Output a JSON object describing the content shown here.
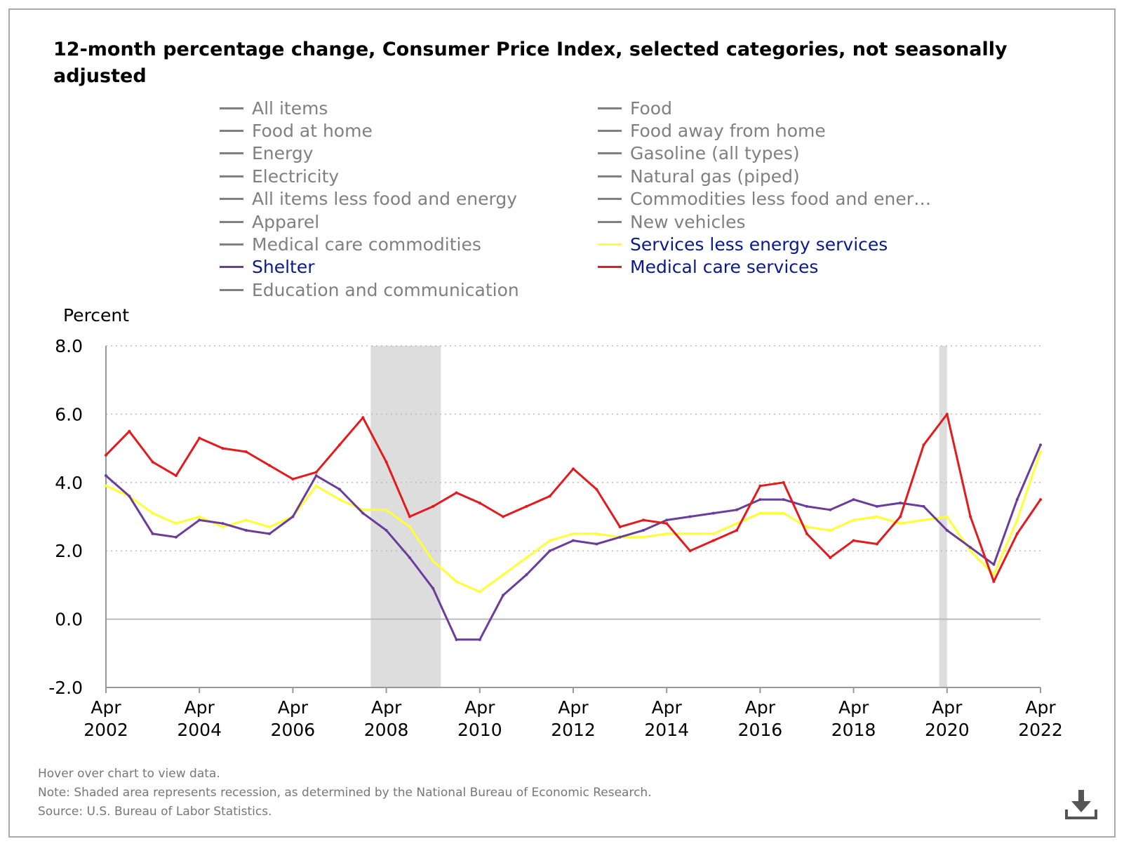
{
  "chart_data": {
    "type": "line",
    "title": "12-month percentage change, Consumer Price Index, selected categories, not seasonally adjusted",
    "ylabel": "Percent",
    "ylim": [
      -2.0,
      8.0
    ],
    "yticks": [
      8.0,
      6.0,
      4.0,
      2.0,
      0.0,
      -2.0
    ],
    "ytick_labels": [
      "8.0",
      "6.0",
      "4.0",
      "2.0",
      "0.0",
      "-2.0"
    ],
    "xlim": [
      "2002-04",
      "2022-04"
    ],
    "xticks": [
      {
        "month": "Apr",
        "year": "2002",
        "date": "2002-04"
      },
      {
        "month": "Apr",
        "year": "2004",
        "date": "2004-04"
      },
      {
        "month": "Apr",
        "year": "2006",
        "date": "2006-04"
      },
      {
        "month": "Apr",
        "year": "2008",
        "date": "2008-04"
      },
      {
        "month": "Apr",
        "year": "2010",
        "date": "2010-04"
      },
      {
        "month": "Apr",
        "year": "2012",
        "date": "2012-04"
      },
      {
        "month": "Apr",
        "year": "2014",
        "date": "2014-04"
      },
      {
        "month": "Apr",
        "year": "2016",
        "date": "2016-04"
      },
      {
        "month": "Apr",
        "year": "2018",
        "date": "2018-04"
      },
      {
        "month": "Apr",
        "year": "2020",
        "date": "2020-04"
      },
      {
        "month": "Apr",
        "year": "2022",
        "date": "2022-04"
      }
    ],
    "grid": true,
    "legend_position": "top",
    "recessions": [
      {
        "start": "2007-12",
        "end": "2009-06"
      },
      {
        "start": "2020-02",
        "end": "2020-04"
      }
    ],
    "legend": [
      {
        "label": "All items",
        "active": false,
        "color": "#808080"
      },
      {
        "label": "Food",
        "active": false,
        "color": "#808080"
      },
      {
        "label": "Food at home",
        "active": false,
        "color": "#808080"
      },
      {
        "label": "Food away from home",
        "active": false,
        "color": "#808080"
      },
      {
        "label": "Energy",
        "active": false,
        "color": "#808080"
      },
      {
        "label": "Gasoline (all types)",
        "active": false,
        "color": "#808080"
      },
      {
        "label": "Electricity",
        "active": false,
        "color": "#808080"
      },
      {
        "label": "Natural gas (piped)",
        "active": false,
        "color": "#808080"
      },
      {
        "label": "All items less food and energy",
        "active": false,
        "color": "#808080"
      },
      {
        "label": "Commodities less food and ener…",
        "active": false,
        "color": "#808080"
      },
      {
        "label": "Apparel",
        "active": false,
        "color": "#808080"
      },
      {
        "label": "New vehicles",
        "active": false,
        "color": "#808080"
      },
      {
        "label": "Medical care commodities",
        "active": false,
        "color": "#808080"
      },
      {
        "label": "Services less energy services",
        "active": true,
        "color": "#ffff33"
      },
      {
        "label": "Shelter",
        "active": true,
        "color": "#6a3d9a"
      },
      {
        "label": "Medical care services",
        "active": true,
        "color": "#e41a1c"
      },
      {
        "label": "Education and communication",
        "active": false,
        "color": "#808080"
      }
    ],
    "series": [
      {
        "name": "Services less energy services",
        "color": "#ffff33",
        "points": [
          [
            "2002-04",
            3.9
          ],
          [
            "2002-10",
            3.6
          ],
          [
            "2003-04",
            3.1
          ],
          [
            "2003-10",
            2.8
          ],
          [
            "2004-04",
            3.0
          ],
          [
            "2004-10",
            2.7
          ],
          [
            "2005-04",
            2.9
          ],
          [
            "2005-10",
            2.7
          ],
          [
            "2006-04",
            3.0
          ],
          [
            "2006-10",
            3.9
          ],
          [
            "2007-04",
            3.5
          ],
          [
            "2007-10",
            3.2
          ],
          [
            "2008-04",
            3.2
          ],
          [
            "2008-10",
            2.7
          ],
          [
            "2009-04",
            1.7
          ],
          [
            "2009-10",
            1.1
          ],
          [
            "2010-04",
            0.8
          ],
          [
            "2010-10",
            1.3
          ],
          [
            "2011-04",
            1.8
          ],
          [
            "2011-10",
            2.3
          ],
          [
            "2012-04",
            2.5
          ],
          [
            "2012-10",
            2.5
          ],
          [
            "2013-04",
            2.4
          ],
          [
            "2013-10",
            2.4
          ],
          [
            "2014-04",
            2.5
          ],
          [
            "2014-10",
            2.5
          ],
          [
            "2015-04",
            2.5
          ],
          [
            "2015-10",
            2.8
          ],
          [
            "2016-04",
            3.1
          ],
          [
            "2016-10",
            3.1
          ],
          [
            "2017-04",
            2.7
          ],
          [
            "2017-10",
            2.6
          ],
          [
            "2018-04",
            2.9
          ],
          [
            "2018-10",
            3.0
          ],
          [
            "2019-04",
            2.8
          ],
          [
            "2019-10",
            2.9
          ],
          [
            "2020-04",
            3.0
          ],
          [
            "2020-10",
            2.0
          ],
          [
            "2021-04",
            1.3
          ],
          [
            "2021-10",
            2.9
          ],
          [
            "2022-04",
            4.9
          ]
        ]
      },
      {
        "name": "Shelter",
        "color": "#6a3d9a",
        "points": [
          [
            "2002-04",
            4.2
          ],
          [
            "2002-10",
            3.6
          ],
          [
            "2003-04",
            2.5
          ],
          [
            "2003-10",
            2.4
          ],
          [
            "2004-04",
            2.9
          ],
          [
            "2004-10",
            2.8
          ],
          [
            "2005-04",
            2.6
          ],
          [
            "2005-10",
            2.5
          ],
          [
            "2006-04",
            3.0
          ],
          [
            "2006-10",
            4.2
          ],
          [
            "2007-04",
            3.8
          ],
          [
            "2007-10",
            3.1
          ],
          [
            "2008-04",
            2.6
          ],
          [
            "2008-10",
            1.8
          ],
          [
            "2009-04",
            0.9
          ],
          [
            "2009-10",
            -0.6
          ],
          [
            "2010-04",
            -0.6
          ],
          [
            "2010-10",
            0.7
          ],
          [
            "2011-04",
            1.3
          ],
          [
            "2011-10",
            2.0
          ],
          [
            "2012-04",
            2.3
          ],
          [
            "2012-10",
            2.2
          ],
          [
            "2013-04",
            2.4
          ],
          [
            "2013-10",
            2.6
          ],
          [
            "2014-04",
            2.9
          ],
          [
            "2014-10",
            3.0
          ],
          [
            "2015-04",
            3.1
          ],
          [
            "2015-10",
            3.2
          ],
          [
            "2016-04",
            3.5
          ],
          [
            "2016-10",
            3.5
          ],
          [
            "2017-04",
            3.3
          ],
          [
            "2017-10",
            3.2
          ],
          [
            "2018-04",
            3.5
          ],
          [
            "2018-10",
            3.3
          ],
          [
            "2019-04",
            3.4
          ],
          [
            "2019-10",
            3.3
          ],
          [
            "2020-04",
            2.6
          ],
          [
            "2020-10",
            2.1
          ],
          [
            "2021-04",
            1.6
          ],
          [
            "2021-10",
            3.5
          ],
          [
            "2022-04",
            5.1
          ]
        ]
      },
      {
        "name": "Medical care services",
        "color": "#e41a1c",
        "points": [
          [
            "2002-04",
            4.8
          ],
          [
            "2002-10",
            5.5
          ],
          [
            "2003-04",
            4.6
          ],
          [
            "2003-10",
            4.2
          ],
          [
            "2004-04",
            5.3
          ],
          [
            "2004-10",
            5.0
          ],
          [
            "2005-04",
            4.9
          ],
          [
            "2005-10",
            4.5
          ],
          [
            "2006-04",
            4.1
          ],
          [
            "2006-10",
            4.3
          ],
          [
            "2007-04",
            5.1
          ],
          [
            "2007-10",
            5.9
          ],
          [
            "2008-04",
            4.6
          ],
          [
            "2008-10",
            3.0
          ],
          [
            "2009-04",
            3.3
          ],
          [
            "2009-10",
            3.7
          ],
          [
            "2010-04",
            3.4
          ],
          [
            "2010-10",
            3.0
          ],
          [
            "2011-04",
            3.3
          ],
          [
            "2011-10",
            3.6
          ],
          [
            "2012-04",
            4.4
          ],
          [
            "2012-10",
            3.8
          ],
          [
            "2013-04",
            2.7
          ],
          [
            "2013-10",
            2.9
          ],
          [
            "2014-04",
            2.8
          ],
          [
            "2014-10",
            2.0
          ],
          [
            "2015-04",
            2.3
          ],
          [
            "2015-10",
            2.6
          ],
          [
            "2016-04",
            3.9
          ],
          [
            "2016-10",
            4.0
          ],
          [
            "2017-04",
            2.5
          ],
          [
            "2017-10",
            1.8
          ],
          [
            "2018-04",
            2.3
          ],
          [
            "2018-10",
            2.2
          ],
          [
            "2019-04",
            3.0
          ],
          [
            "2019-10",
            5.1
          ],
          [
            "2020-04",
            6.0
          ],
          [
            "2020-10",
            3.0
          ],
          [
            "2021-04",
            1.1
          ],
          [
            "2021-10",
            2.5
          ],
          [
            "2022-04",
            3.5
          ]
        ]
      }
    ]
  },
  "footer": {
    "hover_hint": "Hover over chart to view data.",
    "note": "Note: Shaded area represents recession, as determined by the National Bureau of Economic Research.",
    "source": "Source: U.S. Bureau of Labor Statistics."
  },
  "icons": {
    "download": "download-icon"
  },
  "colors": {
    "recession_shade": "#dddddd",
    "grid": "#bbbbbb",
    "zero_line": "#bbbbbb",
    "legend_active_text": "#0a1a8c",
    "legend_inactive": "#808080"
  }
}
